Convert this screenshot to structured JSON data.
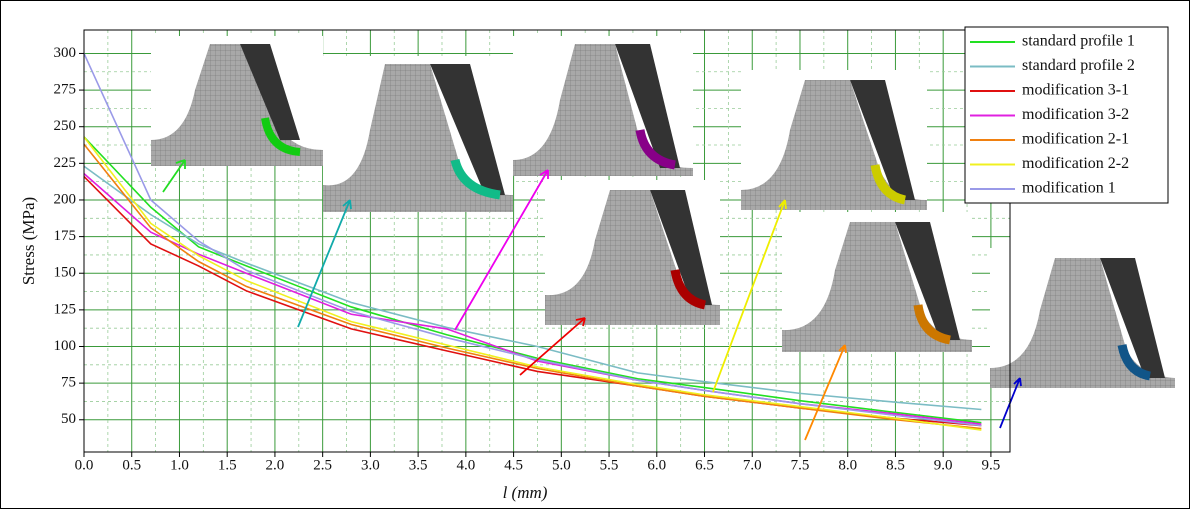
{
  "chart_data": {
    "type": "line",
    "x_label": "l (mm)",
    "y_label": "Stress (MPa)",
    "x": [
      0,
      0.7,
      1.2,
      1.7,
      2.8,
      3.8,
      4.75,
      5.8,
      6.5,
      7.5,
      8.5,
      9.4
    ],
    "xlim": [
      0,
      9.7
    ],
    "ylim": [
      28,
      316
    ],
    "xticks": [
      {
        "value": 0,
        "label": "0.0"
      },
      0.5,
      {
        "value": 1,
        "label": "1.0"
      },
      1.5,
      {
        "value": 2,
        "label": "2.0"
      },
      2.5,
      {
        "value": 3,
        "label": "3.0"
      },
      3.5,
      {
        "value": 4,
        "label": "4.0"
      },
      4.5,
      {
        "value": 5,
        "label": "5.0"
      },
      5.5,
      {
        "value": 6,
        "label": "6.0"
      },
      6.5,
      {
        "value": 7,
        "label": "7.0"
      },
      7.5,
      {
        "value": 8,
        "label": "8.0"
      },
      8.5,
      {
        "value": 9,
        "label": "9.0"
      },
      9.5
    ],
    "yticks": [
      50,
      75,
      100,
      125,
      150,
      175,
      200,
      225,
      250,
      275,
      300
    ],
    "grid": true,
    "legend": "top-right",
    "series": [
      {
        "name": "standard profile 1",
        "color": "#22e022",
        "values": [
          243,
          195,
          168,
          155,
          127,
          108,
          92,
          78,
          72,
          63,
          55,
          48
        ]
      },
      {
        "name": "standard profile 2",
        "color": "#7bbcc4",
        "values": [
          223,
          190,
          170,
          157,
          130,
          113,
          100,
          82,
          76,
          68,
          62,
          57
        ]
      },
      {
        "name": "modification 3-1",
        "color": "#e01010",
        "values": [
          216,
          170,
          155,
          138,
          112,
          97,
          83,
          73,
          66,
          58,
          51,
          46
        ]
      },
      {
        "name": "modification 3-2",
        "color": "#e020e0",
        "values": [
          218,
          178,
          163,
          150,
          122,
          112,
          90,
          77,
          70,
          61,
          54,
          47
        ]
      },
      {
        "name": "modification 2-1",
        "color": "#f08010",
        "values": [
          238,
          181,
          158,
          141,
          115,
          99,
          85,
          73,
          66,
          58,
          50,
          44
        ]
      },
      {
        "name": "modification 2-2",
        "color": "#f0f020",
        "values": [
          243,
          184,
          162,
          145,
          117,
          101,
          86,
          74,
          67,
          59,
          51,
          43
        ]
      },
      {
        "name": "modification 1",
        "color": "#9a9ae8",
        "values": [
          300,
          200,
          172,
          152,
          124,
          106,
          91,
          77,
          70,
          61,
          53,
          46
        ]
      }
    ]
  }
}
